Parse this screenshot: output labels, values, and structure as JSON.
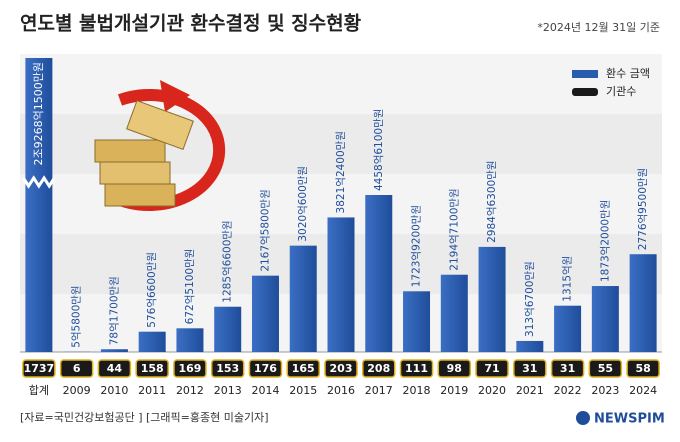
{
  "chart_data": {
    "type": "bar",
    "title": "연도별 불법개설기관 환수결정 및 징수현황",
    "note": "*2024년 12월 31일 기준",
    "categories": [
      "합계",
      "2009",
      "2010",
      "2011",
      "2012",
      "2013",
      "2014",
      "2015",
      "2016",
      "2017",
      "2018",
      "2019",
      "2020",
      "2021",
      "2022",
      "2023",
      "2024"
    ],
    "series": [
      {
        "name": "환수 금액",
        "color": "#2a5cae",
        "values": [
          292681500,
          55800,
          781700,
          5766600,
          6725100,
          12856600,
          21675800,
          30200600,
          38212400,
          44586100,
          17239200,
          21947100,
          29846300,
          3136700,
          13150000,
          18732000,
          27769500
        ],
        "value_labels": [
          "2조9268억1500만원",
          "5억5800만원",
          "78억1700만원",
          "576억6600만원",
          "672억5100만원",
          "1285억6600만원",
          "2167억5800만원",
          "3020억600만원",
          "3821억2400만원",
          "4458억6100만원",
          "1723억9200만원",
          "2194억7100만원",
          "2984억6300만원",
          "313억6700만원",
          "1315억원",
          "1873억2000만원",
          "2776억9500만원"
        ]
      },
      {
        "name": "기관수",
        "color": "#1a1a1a",
        "values": [
          1737,
          6,
          44,
          158,
          169,
          153,
          176,
          165,
          203,
          208,
          111,
          98,
          71,
          31,
          31,
          55,
          58
        ]
      }
    ],
    "source": "[자료=국민건강보험공단 ] [그래픽=홍종현 미술기자]",
    "brand": "NEWSPIM"
  }
}
